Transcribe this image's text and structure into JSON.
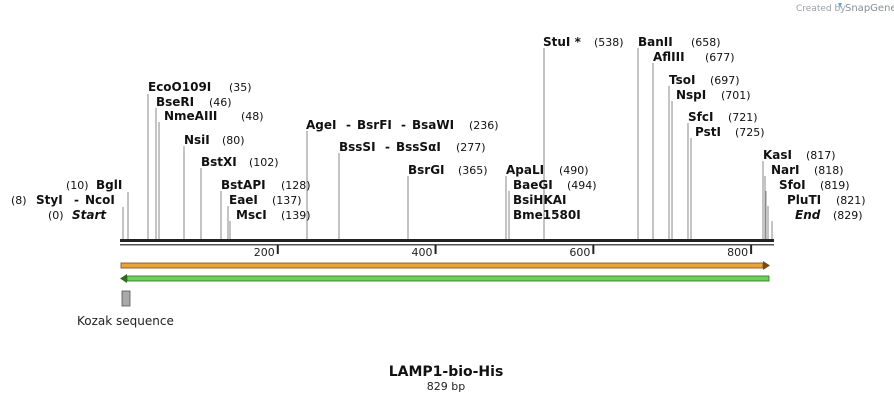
{
  "credit": {
    "prefix": "Created by",
    "brand": "SnapGene"
  },
  "map": {
    "title": "LAMP1-bio-His",
    "length_label": "829 bp",
    "length_bp": 829,
    "ticks": [
      "200",
      "400",
      "600",
      "800"
    ],
    "tick_values": [
      200,
      400,
      600,
      800
    ]
  },
  "sites": [
    {
      "id": "styi-ncoi",
      "pos": "(8)",
      "bp": 8,
      "names": [
        "StyI",
        "NcoI"
      ]
    },
    {
      "id": "start",
      "pos": "(0)",
      "bp": 0,
      "names": [
        "Start"
      ],
      "italic": true
    },
    {
      "id": "bgli",
      "pos": "(10)",
      "bp": 10,
      "names": [
        "BglI"
      ]
    },
    {
      "id": "eco0109i",
      "pos": "(35)",
      "bp": 35,
      "names": [
        "EcoO109I"
      ]
    },
    {
      "id": "beri",
      "pos": "(46)",
      "bp": 46,
      "names": [
        "BseRI"
      ]
    },
    {
      "id": "nmeaiii",
      "pos": "(48)",
      "bp": 48,
      "names": [
        "NmeAIII"
      ]
    },
    {
      "id": "nsii",
      "pos": "(80)",
      "bp": 80,
      "names": [
        "NsiI"
      ]
    },
    {
      "id": "bstxi",
      "pos": "(102)",
      "bp": 102,
      "names": [
        "BstXI"
      ]
    },
    {
      "id": "bstapi",
      "pos": "(128)",
      "bp": 128,
      "names": [
        "BstAPI"
      ]
    },
    {
      "id": "eaei",
      "pos": "(137)",
      "bp": 137,
      "names": [
        "EaeI"
      ]
    },
    {
      "id": "msci",
      "pos": "(139)",
      "bp": 139,
      "names": [
        "MscI"
      ]
    },
    {
      "id": "agei",
      "pos": "(236)",
      "bp": 236,
      "names": [
        "AgeI",
        "BsrFI",
        "BsaWI"
      ]
    },
    {
      "id": "bsssi",
      "pos": "(277)",
      "bp": 277,
      "names": [
        "BssSI",
        "BssSαI"
      ]
    },
    {
      "id": "bsrgi",
      "pos": "(365)",
      "bp": 365,
      "names": [
        "BsrGI"
      ]
    },
    {
      "id": "apali",
      "pos": "(490)",
      "bp": 490,
      "names": [
        "ApaLI"
      ]
    },
    {
      "id": "baegi",
      "pos": "(494)",
      "bp": 494,
      "names": [
        "BaeGI",
        "BsiHKAI",
        "Bme1580I"
      ]
    },
    {
      "id": "stui",
      "pos": "(538)",
      "bp": 538,
      "names": [
        "StuI *"
      ]
    },
    {
      "id": "banii",
      "pos": "(658)",
      "bp": 658,
      "names": [
        "BanII"
      ]
    },
    {
      "id": "afliii",
      "pos": "(677)",
      "bp": 677,
      "names": [
        "AflIII"
      ]
    },
    {
      "id": "tsoi",
      "pos": "(697)",
      "bp": 697,
      "names": [
        "TsoI"
      ]
    },
    {
      "id": "nspi",
      "pos": "(701)",
      "bp": 701,
      "names": [
        "NspI"
      ]
    },
    {
      "id": "sfci",
      "pos": "(721)",
      "bp": 721,
      "names": [
        "SfcI"
      ]
    },
    {
      "id": "psti",
      "pos": "(725)",
      "bp": 725,
      "names": [
        "PstI"
      ]
    },
    {
      "id": "kasi",
      "pos": "(817)",
      "bp": 817,
      "names": [
        "KasI"
      ]
    },
    {
      "id": "nari",
      "pos": "(818)",
      "bp": 818,
      "names": [
        "NarI"
      ]
    },
    {
      "id": "sfoi",
      "pos": "(819)",
      "bp": 819,
      "names": [
        "SfoI"
      ]
    },
    {
      "id": "pluti",
      "pos": "(821)",
      "bp": 821,
      "names": [
        "PluTI"
      ]
    },
    {
      "id": "end",
      "pos": "(829)",
      "bp": 829,
      "names": [
        "End"
      ],
      "italic": true
    }
  ],
  "features": [
    {
      "id": "orange-arrow",
      "label": "",
      "color": "#e8a33a",
      "direction": "forward"
    },
    {
      "id": "green-arrow",
      "label": "",
      "color": "#6bd35a",
      "direction": "reverse"
    },
    {
      "id": "kozak",
      "label": "Kozak sequence",
      "color": "#a9a9a9"
    }
  ]
}
